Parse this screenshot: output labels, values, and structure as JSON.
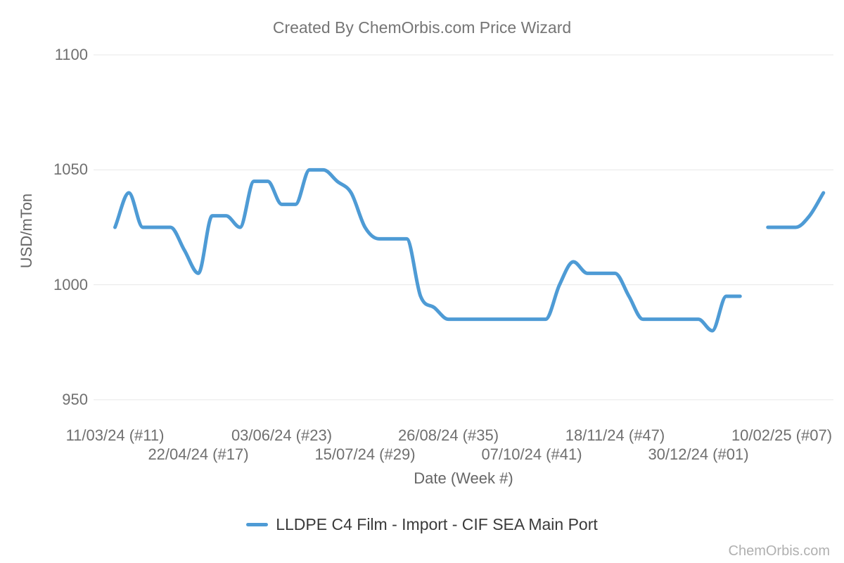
{
  "header": {
    "title": "Created By ChemOrbis.com Price Wizard"
  },
  "watermark": "ChemOrbis.com",
  "legend": {
    "entries": [
      {
        "label": "LLDPE C4 Film - Import - CIF SEA Main Port",
        "color": "#4e9bd5"
      }
    ]
  },
  "colors": {
    "line": "#4e9bd5",
    "grid": "#e7e7e7",
    "title": "#757575",
    "ticks": "#6f6f6f",
    "axis_titles": "#666666",
    "legend_text": "#3a3a3a",
    "watermark": "#b0b0b0"
  },
  "chart_data": {
    "type": "line",
    "title": "Created By ChemOrbis.com Price Wizard",
    "xlabel": "Date (Week #)",
    "ylabel": "USD/mTon",
    "ylim": [
      950,
      1100
    ],
    "yticks": [
      1100,
      1050,
      1000,
      950
    ],
    "grid": true,
    "legend_position": "bottom",
    "x_tick_indices": [
      0,
      6,
      12,
      18,
      24,
      30,
      36,
      42,
      48
    ],
    "xtick_labels": [
      "11/03/24 (#11)",
      "22/04/24 (#17)",
      "03/06/24 (#23)",
      "15/07/24 (#29)",
      "26/08/24 (#35)",
      "07/10/24 (#41)",
      "18/11/24 (#47)",
      "30/12/24 (#01)",
      "10/02/25 (#07)"
    ],
    "series": [
      {
        "name": "LLDPE C4 Film - Import - CIF SEA Main Port",
        "color": "#4e9bd5",
        "x": [
          "11/03/24 (#11)",
          "18/03/24 (#12)",
          "25/03/24 (#13)",
          "01/04/24 (#14)",
          "08/04/24 (#15)",
          "15/04/24 (#16)",
          "22/04/24 (#17)",
          "29/04/24 (#18)",
          "06/05/24 (#19)",
          "13/05/24 (#20)",
          "20/05/24 (#21)",
          "27/05/24 (#22)",
          "03/06/24 (#23)",
          "10/06/24 (#24)",
          "17/06/24 (#25)",
          "24/06/24 (#26)",
          "01/07/24 (#27)",
          "08/07/24 (#28)",
          "15/07/24 (#29)",
          "22/07/24 (#30)",
          "29/07/24 (#31)",
          "05/08/24 (#32)",
          "12/08/24 (#33)",
          "19/08/24 (#34)",
          "26/08/24 (#35)",
          "02/09/24 (#36)",
          "09/09/24 (#37)",
          "16/09/24 (#38)",
          "23/09/24 (#39)",
          "30/09/24 (#40)",
          "07/10/24 (#41)",
          "14/10/24 (#42)",
          "21/10/24 (#43)",
          "28/10/24 (#44)",
          "04/11/24 (#45)",
          "11/11/24 (#46)",
          "18/11/24 (#47)",
          "25/11/24 (#48)",
          "02/12/24 (#49)",
          "09/12/24 (#50)",
          "16/12/24 (#51)",
          "23/12/24 (#52)",
          "30/12/24 (#01)",
          "06/01/25 (#02)",
          "13/01/25 (#03)",
          "20/01/25 (#04)",
          "27/01/25 (#05)",
          "03/02/25 (#06)",
          "10/02/25 (#07)",
          "17/02/25 (#08)",
          "24/02/25 (#09)",
          "03/03/25 (#10)"
        ],
        "values": [
          1025,
          1040,
          1025,
          1025,
          1025,
          1015,
          1005,
          1030,
          1030,
          1025,
          1045,
          1045,
          1035,
          1035,
          1050,
          1050,
          1045,
          1040,
          1025,
          1020,
          1020,
          1020,
          995,
          990,
          985,
          985,
          985,
          985,
          985,
          985,
          985,
          985,
          1000,
          1010,
          1005,
          1005,
          1005,
          995,
          985,
          985,
          985,
          985,
          985,
          980,
          995,
          995,
          null,
          1025,
          1025,
          1025,
          1030,
          1040
        ]
      }
    ]
  }
}
